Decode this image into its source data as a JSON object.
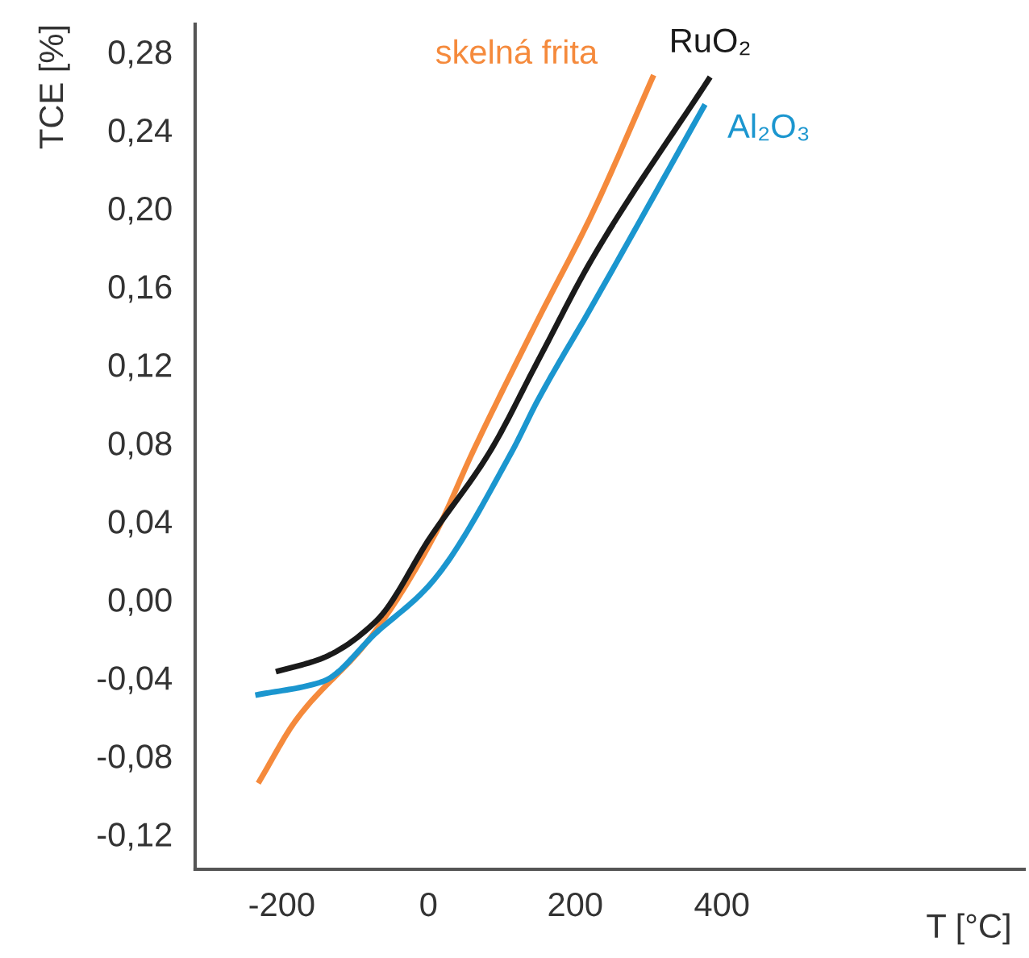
{
  "chart_data": {
    "type": "line",
    "xlabel": "T [°C]",
    "ylabel": "TCE [%]",
    "xlim": [
      -318,
      812
    ],
    "ylim": [
      -0.138,
      0.294
    ],
    "xticks": [
      -200,
      0,
      200,
      400
    ],
    "yticks": [
      {
        "value": 0.28,
        "label": "0,28"
      },
      {
        "value": 0.24,
        "label": "0,24"
      },
      {
        "value": 0.2,
        "label": "0,20"
      },
      {
        "value": 0.16,
        "label": "0,16"
      },
      {
        "value": 0.12,
        "label": "0,12"
      },
      {
        "value": 0.08,
        "label": "0,08"
      },
      {
        "value": 0.04,
        "label": "0,04"
      },
      {
        "value": 0.0,
        "label": "0,00"
      },
      {
        "value": -0.04,
        "label": "-0,04"
      },
      {
        "value": -0.08,
        "label": "-0,08"
      },
      {
        "value": -0.12,
        "label": "-0,12"
      }
    ],
    "grid": false,
    "legend": false,
    "series": [
      {
        "name": "skelná frita",
        "color": "#f58a3c",
        "x": [
          -232,
          -181,
          -78,
          10,
          60,
          148,
          223,
          307
        ],
        "values": [
          -0.094,
          -0.062,
          -0.019,
          0.034,
          0.075,
          0.142,
          0.197,
          0.268
        ]
      },
      {
        "name": "RuO₂",
        "color": "#1a1a1a",
        "x": [
          -208,
          -144,
          -71,
          3,
          83,
          148,
          223,
          384
        ],
        "values": [
          -0.037,
          -0.03,
          -0.011,
          0.032,
          0.075,
          0.121,
          0.174,
          0.267
        ]
      },
      {
        "name": "Al₂O₃",
        "color": "#1b96cf",
        "x": [
          -236,
          -144,
          -71,
          3,
          113,
          148,
          223,
          377
        ],
        "values": [
          -0.049,
          -0.042,
          -0.017,
          0.008,
          0.075,
          0.101,
          0.15,
          0.253
        ]
      }
    ]
  }
}
